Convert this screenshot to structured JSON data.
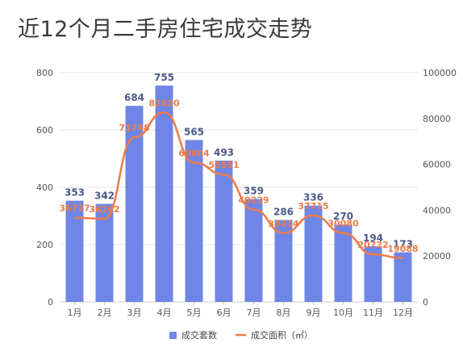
{
  "title": "近12个月二手房住宅成交走势",
  "colors": {
    "bar": "#6f86e6",
    "line": "#ee7b48",
    "grid": "#e6e6e6"
  },
  "chart_data": {
    "type": "bar",
    "categories": [
      "1月",
      "2月",
      "3月",
      "4月",
      "5月",
      "6月",
      "7月",
      "8月",
      "9月",
      "10月",
      "11月",
      "12月"
    ],
    "series": [
      {
        "name": "成交套数",
        "type": "bar",
        "axis": "left",
        "values": [
          353,
          342,
          684,
          755,
          565,
          493,
          359,
          286,
          336,
          270,
          194,
          173
        ],
        "labels": [
          "353",
          "342",
          "684",
          "755",
          "565",
          "493",
          "359",
          "286",
          "336",
          "270",
          "194",
          "173"
        ]
      },
      {
        "name": "成交面积（㎡）",
        "type": "line",
        "axis": "right",
        "values": [
          36717,
          36262,
          71748,
          82620,
          60804,
          55551,
          40229,
          30014,
          37715,
          30080,
          20722,
          19088
        ],
        "labels": [
          "36717",
          "36262",
          "71748",
          "82620",
          "60804",
          "55551",
          "40229",
          "30014",
          "37715",
          "30080",
          "20722",
          "19088"
        ]
      }
    ],
    "y_left": {
      "ylim": [
        0,
        800
      ],
      "ticks": [
        "0",
        "200",
        "400",
        "600",
        "800"
      ]
    },
    "y_right": {
      "ylim": [
        0,
        100000
      ],
      "ticks": [
        "0",
        "20000",
        "40000",
        "60000",
        "80000",
        "100000"
      ]
    },
    "grid": true,
    "legend": "bottom-center"
  }
}
